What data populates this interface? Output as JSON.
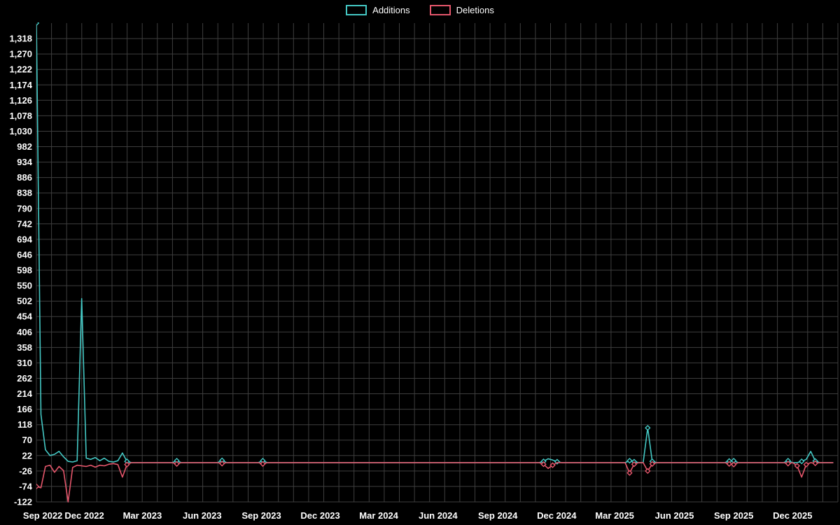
{
  "page": {
    "background": "#000000",
    "text_color": "#ffffff",
    "grid_color": "#3e3e3e"
  },
  "chart_data": {
    "type": "line",
    "title": "",
    "legend_position": "top-center",
    "grid": true,
    "x_unit": "week",
    "x_total_weeks": 177,
    "ylim": [
      -122,
      1366
    ],
    "x_ticks": [
      {
        "label": "Sep 2022",
        "week": 1.4
      },
      {
        "label": "Dec 2022",
        "week": 10.6
      },
      {
        "label": "Mar 2023",
        "week": 23.4
      },
      {
        "label": "Jun 2023",
        "week": 36.6
      },
      {
        "label": "Sep 2023",
        "week": 49.7
      },
      {
        "label": "Dec 2023",
        "week": 62.7
      },
      {
        "label": "Mar 2024",
        "week": 75.6
      },
      {
        "label": "Jun 2024",
        "week": 88.7
      },
      {
        "label": "Sep 2024",
        "week": 101.9
      },
      {
        "label": "Dec 2024",
        "week": 114.9
      },
      {
        "label": "Mar 2025",
        "week": 127.7
      },
      {
        "label": "Jun 2025",
        "week": 140.9
      },
      {
        "label": "Sep 2025",
        "week": 154.0
      },
      {
        "label": "Dec 2025",
        "week": 167.0
      }
    ],
    "y_ticks": {
      "values": [
        -122,
        -74,
        -26,
        22,
        70,
        118,
        166,
        214,
        262,
        310,
        358,
        406,
        454,
        502,
        550,
        598,
        646,
        694,
        742,
        790,
        838,
        886,
        934,
        982,
        1030,
        1078,
        1126,
        1174,
        1222,
        1270,
        1318
      ],
      "labels": [
        "-122",
        "-74",
        "-26",
        "22",
        "70",
        "118",
        "166",
        "214",
        "262",
        "310",
        "358",
        "406",
        "454",
        "502",
        "550",
        "598",
        "646",
        "694",
        "742",
        "790",
        "838",
        "886",
        "934",
        "982",
        "1,030",
        "1,078",
        "1,126",
        "1,174",
        "1,222",
        "1,270",
        "1,318"
      ]
    },
    "series": [
      {
        "name": "Additions",
        "color": "#44c8c4",
        "values": [
          1366,
          150,
          40,
          22,
          26,
          35,
          18,
          4,
          2,
          6,
          510,
          14,
          10,
          16,
          6,
          14,
          4,
          2,
          6,
          30,
          4,
          0,
          0,
          0,
          0,
          0,
          0,
          0,
          0,
          0,
          0,
          6,
          0,
          0,
          0,
          0,
          0,
          0,
          0,
          0,
          0,
          7,
          0,
          0,
          0,
          0,
          0,
          0,
          0,
          0,
          6,
          0,
          0,
          0,
          0,
          0,
          0,
          0,
          0,
          0,
          0,
          0,
          0,
          0,
          0,
          0,
          0,
          0,
          0,
          0,
          0,
          0,
          0,
          0,
          0,
          0,
          0,
          0,
          0,
          0,
          0,
          0,
          0,
          0,
          0,
          0,
          0,
          0,
          0,
          0,
          0,
          0,
          0,
          0,
          0,
          0,
          0,
          0,
          0,
          0,
          0,
          0,
          0,
          0,
          0,
          0,
          0,
          0,
          0,
          0,
          0,
          0,
          4,
          12,
          8,
          3,
          0,
          0,
          0,
          0,
          0,
          0,
          0,
          0,
          0,
          0,
          0,
          0,
          0,
          0,
          0,
          6,
          3,
          0,
          0,
          108,
          4,
          0,
          0,
          0,
          0,
          0,
          0,
          0,
          0,
          0,
          0,
          0,
          0,
          0,
          0,
          0,
          0,
          5,
          6,
          0,
          0,
          0,
          0,
          0,
          0,
          0,
          0,
          0,
          0,
          0,
          6,
          0,
          0,
          4,
          10,
          35,
          5,
          0,
          0,
          0,
          0
        ]
      },
      {
        "name": "Deletions",
        "color": "#e4566b",
        "values": [
          -74,
          -78,
          -12,
          -8,
          -30,
          -12,
          -25,
          -122,
          -15,
          -8,
          -10,
          -12,
          -8,
          -14,
          -8,
          -10,
          -5,
          -3,
          -6,
          -45,
          -6,
          0,
          0,
          0,
          0,
          0,
          0,
          0,
          0,
          0,
          0,
          -4,
          0,
          0,
          0,
          0,
          0,
          0,
          0,
          0,
          0,
          -3,
          0,
          0,
          0,
          0,
          0,
          0,
          0,
          0,
          -4,
          0,
          0,
          0,
          0,
          0,
          0,
          0,
          0,
          0,
          0,
          0,
          0,
          0,
          0,
          0,
          0,
          0,
          0,
          0,
          0,
          0,
          0,
          0,
          0,
          0,
          0,
          0,
          0,
          0,
          0,
          0,
          0,
          0,
          0,
          0,
          0,
          0,
          0,
          0,
          0,
          0,
          0,
          0,
          0,
          0,
          0,
          0,
          0,
          0,
          0,
          0,
          0,
          0,
          0,
          0,
          0,
          0,
          0,
          0,
          0,
          0,
          -5,
          -18,
          -8,
          0,
          0,
          0,
          0,
          0,
          0,
          0,
          0,
          0,
          0,
          0,
          0,
          0,
          0,
          0,
          0,
          -32,
          -5,
          0,
          0,
          -26,
          -4,
          0,
          0,
          0,
          0,
          0,
          0,
          0,
          0,
          0,
          0,
          0,
          0,
          0,
          0,
          0,
          0,
          -4,
          -6,
          0,
          0,
          0,
          0,
          0,
          0,
          0,
          0,
          0,
          0,
          0,
          -3,
          0,
          -10,
          -45,
          -6,
          0,
          -2,
          0,
          0,
          0,
          0
        ]
      }
    ],
    "layout": {
      "vertical_gridlines": 53
    }
  }
}
